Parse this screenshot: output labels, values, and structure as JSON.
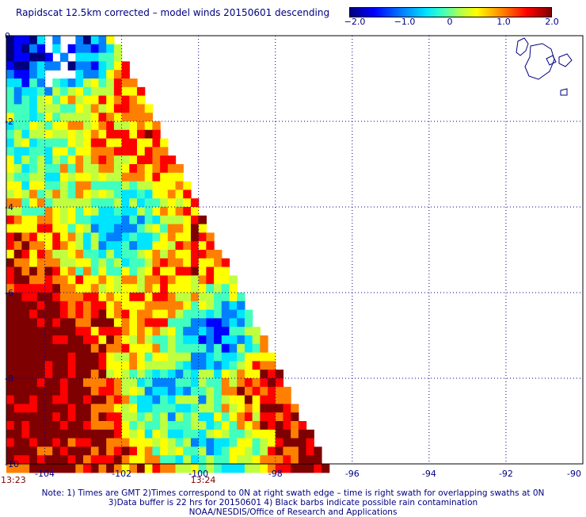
{
  "title": "Rapidscat 12.5km corrected – model winds 20150601 descending",
  "colorbar": {
    "ticks": [
      "−2.0",
      "−1.0",
      "0",
      "1.0",
      "2.0"
    ],
    "min": -2.0,
    "max": 2.0,
    "colors": [
      "#00007f",
      "#0000ff",
      "#0080ff",
      "#00e5ff",
      "#40ffbf",
      "#bfff40",
      "#ffff00",
      "#ff8000",
      "#ff0000",
      "#7f0000"
    ]
  },
  "axes": {
    "x_ticks": [
      "-104",
      "-102",
      "-100",
      "-98",
      "-96",
      "-94",
      "-92",
      "-90"
    ],
    "y_ticks": [
      "0",
      "-2",
      "-4",
      "-6",
      "-8",
      "-10"
    ],
    "lon_range": [
      -105,
      -90
    ],
    "lat_range": [
      -10,
      0
    ]
  },
  "times": [
    "13:23",
    "13:24"
  ],
  "footer": {
    "line1": "Note: 1) Times are GMT 2)Times correspond to 0N at right swath edge – time is right swath for overlapping swaths at 0N",
    "line2": "3)Data buffer is 22 hrs for 20150601 4) Black barbs indicate possible rain contamination",
    "line3": "NOAA/NESDIS/Office of Research and Applications"
  },
  "chart_data": {
    "type": "heatmap",
    "title": "Rapidscat 12.5km corrected – model winds 20150601 descending",
    "xlabel": "",
    "ylabel": "",
    "xlim": [
      -105,
      -90
    ],
    "ylim": [
      -10,
      0
    ],
    "value_range": [
      -2.0,
      2.0
    ],
    "grid": true,
    "swath": "triangular descending swath covering west of a diagonal from (-102,0) to (-96.5,-10)",
    "regions": [
      {
        "area": "northwest corner near 0N, -104.5",
        "value": -2.0
      },
      {
        "area": "around 4.5S, -102",
        "value": -1.0
      },
      {
        "area": "around 7S, -99.5",
        "value": -1.8
      },
      {
        "area": "around 7.5S, -104.5",
        "value": 2.0
      },
      {
        "area": "around 9.5S, -96.5",
        "value": 2.0
      },
      {
        "area": "around 8S, -99",
        "value": 1.5
      }
    ]
  }
}
